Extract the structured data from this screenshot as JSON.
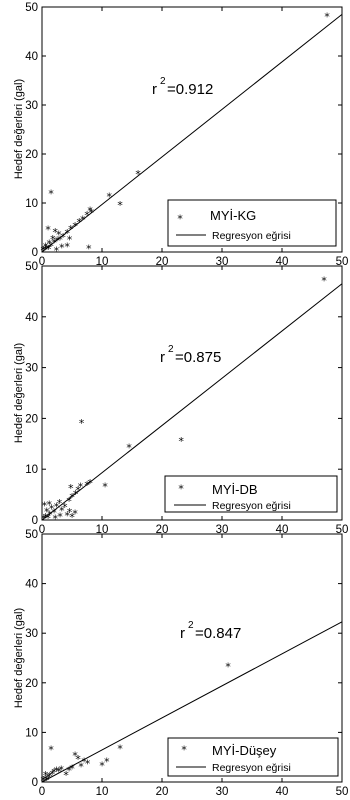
{
  "chart_data": [
    {
      "type": "scatter",
      "ylabel": "Hedef değerleri (gal)",
      "xlim": [
        0,
        50
      ],
      "ylim": [
        0,
        50
      ],
      "x_ticks": [
        "0",
        "10",
        "20",
        "30",
        "40",
        "50"
      ],
      "y_ticks": [
        "0",
        "10",
        "20",
        "30",
        "40",
        "50"
      ],
      "annotation": {
        "base": "r",
        "sup": "2",
        "text": "=0.912"
      },
      "legend": {
        "placement": "bottom-right",
        "scatter_label": "MYİ-KG",
        "line_label": "Regresyon eğrisi"
      },
      "regression": {
        "x": [
          0,
          50
        ],
        "y": [
          0,
          48.5
        ]
      },
      "series": [
        {
          "name": "MYİ-KG",
          "points": [
            [
              0.2,
              0.3
            ],
            [
              0.5,
              0.4
            ],
            [
              0.8,
              0.6
            ],
            [
              1.1,
              0.5
            ],
            [
              0.6,
              1.0
            ],
            [
              1.5,
              1.1
            ],
            [
              1.2,
              1.6
            ],
            [
              2.0,
              1.8
            ],
            [
              2.5,
              2.2
            ],
            [
              1.8,
              2.6
            ],
            [
              3.0,
              2.4
            ],
            [
              3.5,
              3.0
            ],
            [
              2.8,
              3.5
            ],
            [
              2.2,
              4.0
            ],
            [
              1.0,
              4.5
            ],
            [
              4.2,
              3.8
            ],
            [
              4.8,
              4.6
            ],
            [
              5.5,
              5.2
            ],
            [
              6.2,
              6.0
            ],
            [
              6.8,
              6.5
            ],
            [
              7.5,
              7.5
            ],
            [
              8.2,
              8.0
            ],
            [
              8.0,
              8.4
            ],
            [
              11.2,
              11.2
            ],
            [
              13.0,
              9.5
            ],
            [
              16.0,
              15.8
            ],
            [
              1.5,
              11.8
            ],
            [
              4.2,
              1.0
            ],
            [
              4.6,
              2.4
            ],
            [
              7.8,
              0.6
            ],
            [
              3.3,
              0.8
            ],
            [
              2.4,
              0.2
            ],
            [
              47.5,
              48.0
            ]
          ]
        }
      ]
    },
    {
      "type": "scatter",
      "ylabel": "Hedef değerleri (gal)",
      "xlim": [
        0,
        50
      ],
      "ylim": [
        0,
        50
      ],
      "x_ticks": [
        "0",
        "10",
        "20",
        "30",
        "40",
        "50"
      ],
      "y_ticks": [
        "0",
        "10",
        "20",
        "30",
        "40",
        "50"
      ],
      "annotation": {
        "base": "r",
        "sup": "2",
        "text": "=0.875"
      },
      "legend": {
        "placement": "bottom-right",
        "scatter_label": "MYİ-DB",
        "line_label": "Regresyon eğrisi"
      },
      "regression": {
        "x": [
          0,
          50
        ],
        "y": [
          0,
          46.5
        ]
      },
      "series": [
        {
          "name": "MYİ-DB",
          "points": [
            [
              0.3,
              0.2
            ],
            [
              0.6,
              0.5
            ],
            [
              1.0,
              0.3
            ],
            [
              1.3,
              1.0
            ],
            [
              0.8,
              1.6
            ],
            [
              0.4,
              2.8
            ],
            [
              1.6,
              2.2
            ],
            [
              2.0,
              1.4
            ],
            [
              2.4,
              2.6
            ],
            [
              2.9,
              3.2
            ],
            [
              3.3,
              1.8
            ],
            [
              3.8,
              2.5
            ],
            [
              4.2,
              0.8
            ],
            [
              4.6,
              1.5
            ],
            [
              5.0,
              0.5
            ],
            [
              5.5,
              1.2
            ],
            [
              4.5,
              3.6
            ],
            [
              5.0,
              4.4
            ],
            [
              5.6,
              5.0
            ],
            [
              6.0,
              5.8
            ],
            [
              4.8,
              6.2
            ],
            [
              6.4,
              6.5
            ],
            [
              7.5,
              6.8
            ],
            [
              8.0,
              7.2
            ],
            [
              10.5,
              6.5
            ],
            [
              6.6,
              19.0
            ],
            [
              14.5,
              14.2
            ],
            [
              23.2,
              15.5
            ],
            [
              2.2,
              0.2
            ],
            [
              3.0,
              0.6
            ],
            [
              1.2,
              3.0
            ],
            [
              47.0,
              47.0
            ]
          ]
        }
      ]
    },
    {
      "type": "scatter",
      "ylabel": "Hedef değerleri (gal)",
      "xlim": [
        0,
        50
      ],
      "ylim": [
        0,
        50
      ],
      "x_ticks": [
        "0",
        "10",
        "20",
        "30",
        "40",
        "50"
      ],
      "y_ticks": [
        "0",
        "10",
        "20",
        "30",
        "40",
        "50"
      ],
      "annotation": {
        "base": "r",
        "sup": "2",
        "text": "=0.847"
      },
      "legend": {
        "placement": "bottom-right",
        "scatter_label": "MYİ-Düşey",
        "line_label": "Regresyon eğrisi"
      },
      "regression": {
        "x": [
          0,
          50
        ],
        "y": [
          0,
          32.3
        ]
      },
      "series": [
        {
          "name": "MYİ-Düşey",
          "points": [
            [
              0.2,
              0.2
            ],
            [
              0.5,
              0.5
            ],
            [
              0.8,
              0.3
            ],
            [
              1.0,
              0.8
            ],
            [
              1.3,
              1.1
            ],
            [
              0.6,
              1.3
            ],
            [
              1.7,
              1.5
            ],
            [
              2.0,
              1.9
            ],
            [
              2.4,
              2.2
            ],
            [
              2.8,
              2.0
            ],
            [
              1.5,
              6.5
            ],
            [
              3.2,
              2.4
            ],
            [
              4.0,
              1.3
            ],
            [
              4.5,
              2.2
            ],
            [
              5.0,
              2.6
            ],
            [
              5.5,
              5.2
            ],
            [
              6.0,
              4.5
            ],
            [
              6.5,
              3.0
            ],
            [
              7.0,
              4.0
            ],
            [
              7.6,
              3.6
            ],
            [
              10.0,
              3.2
            ],
            [
              10.8,
              4.0
            ],
            [
              13.0,
              6.7
            ],
            [
              31.0,
              23.2
            ]
          ]
        }
      ]
    }
  ]
}
